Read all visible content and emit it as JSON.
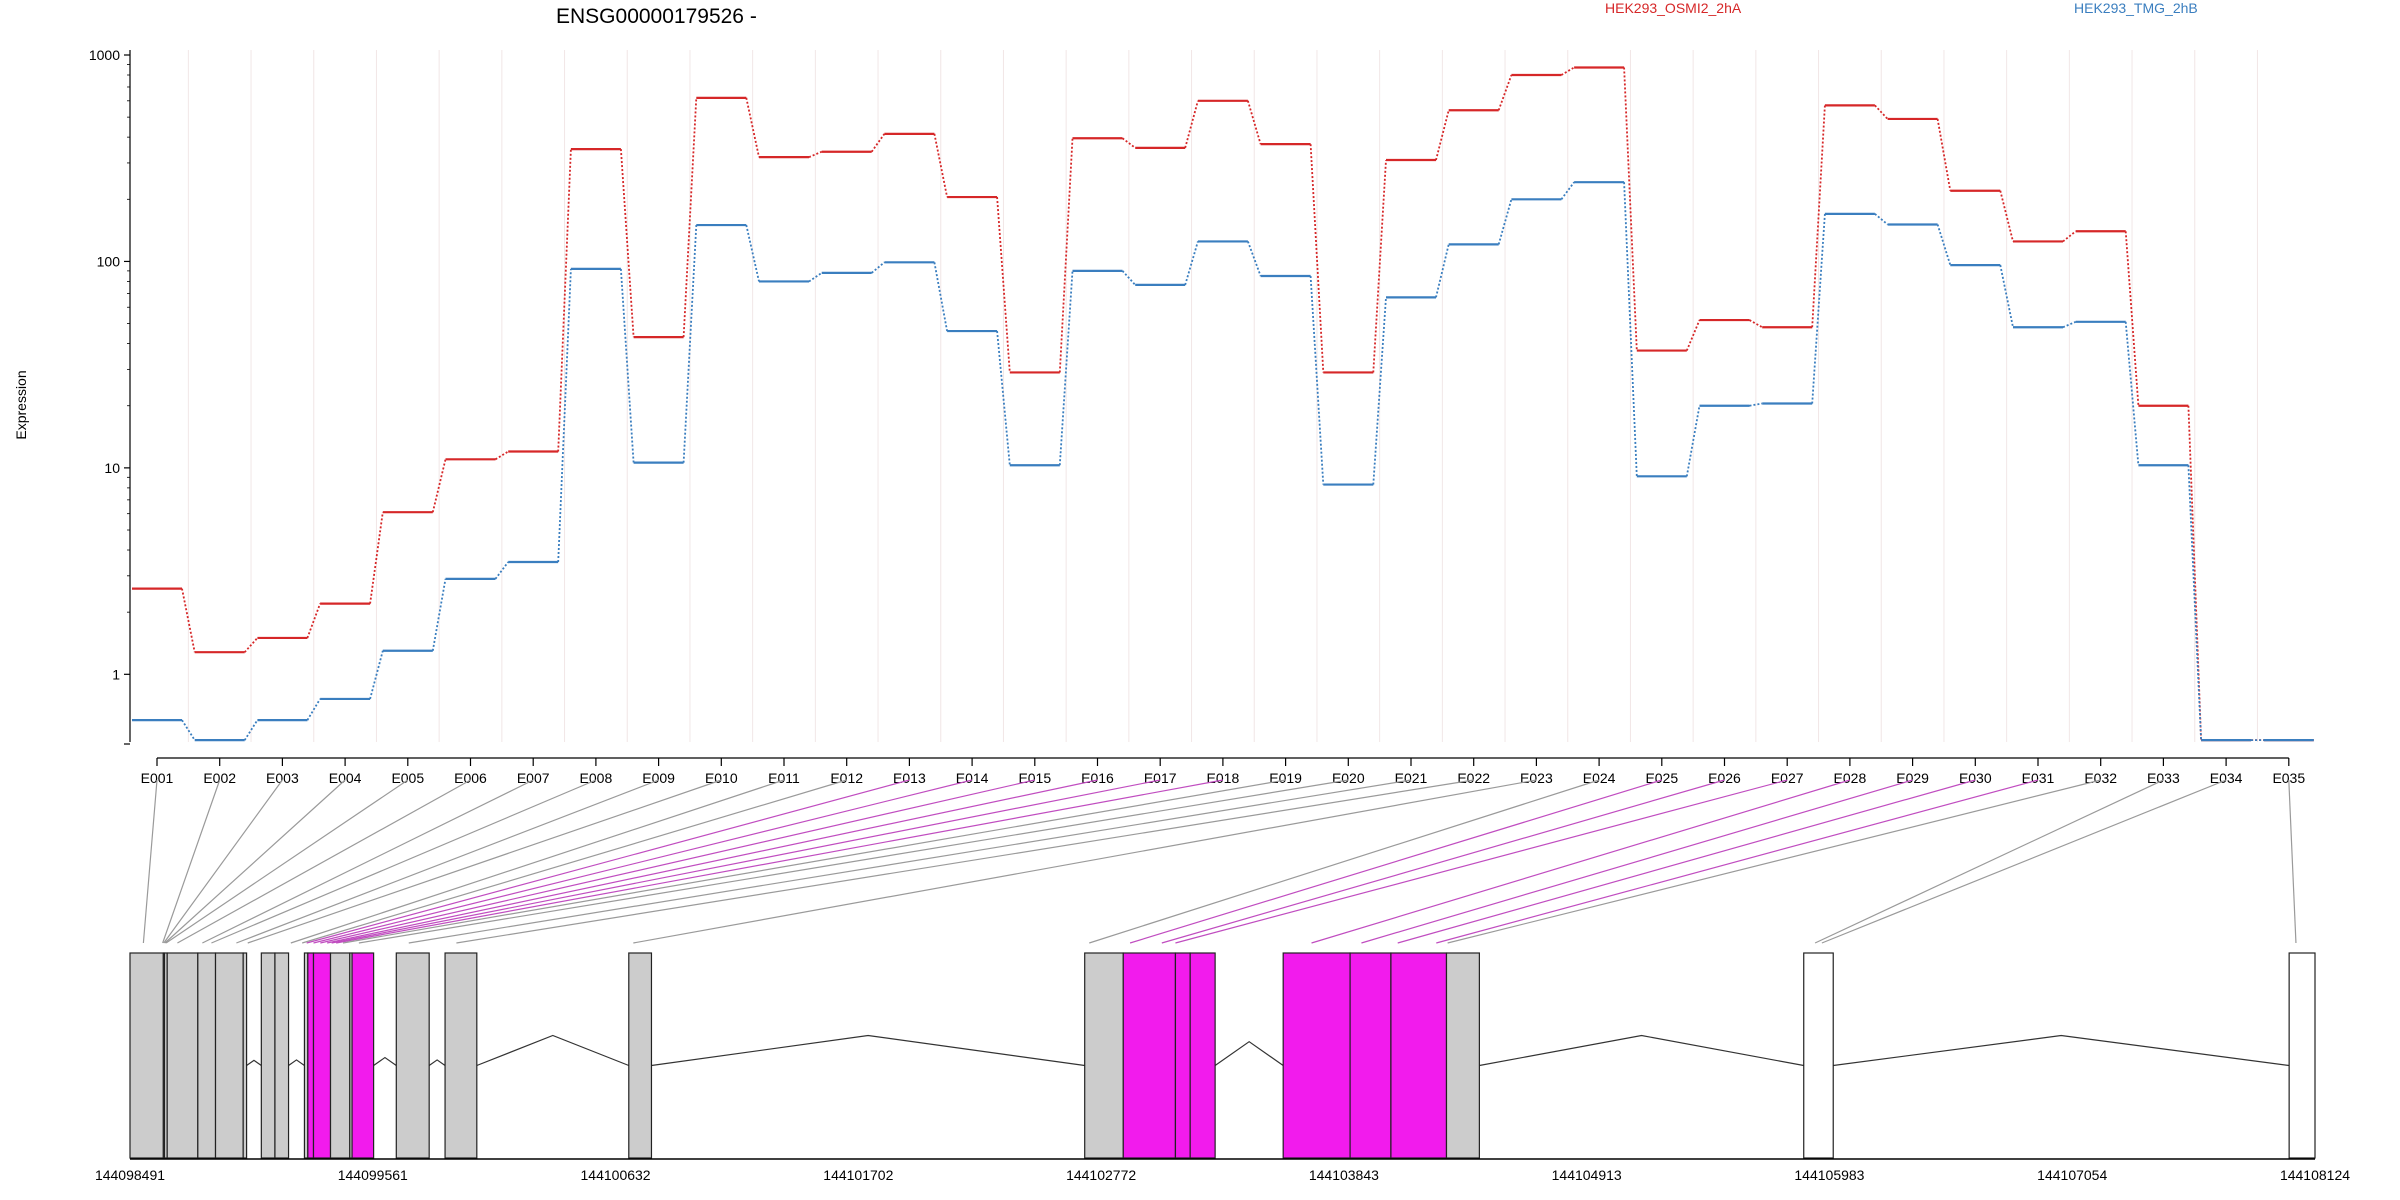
{
  "chart_data": {
    "type": "line",
    "title": "ENSG00000179526 -",
    "ylabel": "Expression",
    "yscale": "log",
    "y_ticks": [
      1,
      10,
      100,
      1000
    ],
    "y_tick_labels": [
      "1",
      "10",
      "100",
      "1000"
    ],
    "ylim": [
      0.47,
      1000
    ],
    "grid": "vertical",
    "legend_placement": "top",
    "categories": [
      "E001",
      "E002",
      "E003",
      "E004",
      "E005",
      "E006",
      "E007",
      "E008",
      "E009",
      "E010",
      "E011",
      "E012",
      "E013",
      "E014",
      "E015",
      "E016",
      "E017",
      "E018",
      "E019",
      "E020",
      "E021",
      "E022",
      "E023",
      "E024",
      "E025",
      "E026",
      "E027",
      "E028",
      "E029",
      "E030",
      "E031",
      "E032",
      "E033",
      "E034",
      "E035"
    ],
    "series": [
      {
        "name": "HEK293_OSMI2_2hA",
        "color": "#d62728",
        "values": [
          2.6,
          1.28,
          1.5,
          2.2,
          6.1,
          11,
          12,
          350,
          43,
          620,
          320,
          340,
          415,
          205,
          29,
          395,
          355,
          600,
          370,
          29,
          310,
          540,
          800,
          870,
          37,
          52,
          48,
          570,
          490,
          220,
          125,
          140,
          20,
          0.48,
          0.48
        ]
      },
      {
        "name": "HEK293_TMG_2hB",
        "color": "#3a7ebf",
        "values": [
          0.6,
          0.48,
          0.6,
          0.76,
          1.3,
          2.9,
          3.5,
          92,
          10.6,
          150,
          80,
          88,
          99,
          46,
          10.3,
          90,
          77,
          125,
          85,
          8.3,
          67,
          121,
          200,
          242,
          9.1,
          20,
          20.5,
          170,
          151,
          96,
          48,
          51,
          10.3,
          0.48,
          0.48
        ]
      }
    ],
    "gene_model": {
      "coordinate_labels": [
        "144098491",
        "144099561",
        "144100632",
        "144101702",
        "144102772",
        "144103843",
        "144104913",
        "144105983",
        "144107054",
        "144108124"
      ],
      "genome_start": 144098491,
      "genome_end": 144108124,
      "exon_colors": {
        "default": "#cccccc",
        "highlighted": "#f21bed",
        "unexpressed": "#ffffff"
      },
      "connector_colors": {
        "default": "#9a9a9a",
        "highlighted": "#c04dc0"
      },
      "exons": [
        {
          "id": "E001",
          "start": 144098491,
          "end": 144098638,
          "fill": "default"
        },
        {
          "id": "E002",
          "start": 144098638,
          "end": 144098643,
          "fill": "default"
        },
        {
          "id": "E003",
          "start": 144098643,
          "end": 144098655,
          "fill": "default"
        },
        {
          "id": "E004",
          "start": 144098655,
          "end": 144098790,
          "fill": "default"
        },
        {
          "id": "E005",
          "start": 144098790,
          "end": 144098868,
          "fill": "default"
        },
        {
          "id": "E006",
          "start": 144098868,
          "end": 144098990,
          "fill": "default"
        },
        {
          "id": "E007",
          "start": 144098990,
          "end": 144099005,
          "fill": "default"
        },
        {
          "id": "E008",
          "start": 144099070,
          "end": 144099130,
          "fill": "default"
        },
        {
          "id": "E009",
          "start": 144099130,
          "end": 144099190,
          "fill": "default"
        },
        {
          "id": "E010",
          "start": 144099260,
          "end": 144099275,
          "fill": "default"
        },
        {
          "id": "E011",
          "start": 144099275,
          "end": 144099300,
          "fill": "highlighted"
        },
        {
          "id": "E012",
          "start": 144099300,
          "end": 144099375,
          "fill": "highlighted"
        },
        {
          "id": "E013",
          "start": 144099375,
          "end": 144099460,
          "fill": "default"
        },
        {
          "id": "E014",
          "start": 144099460,
          "end": 144099470,
          "fill": "default"
        },
        {
          "id": "E015",
          "start": 144099470,
          "end": 144099565,
          "fill": "highlighted"
        },
        {
          "id": "E016",
          "start": 144099665,
          "end": 144099810,
          "fill": "default"
        },
        {
          "id": "E017",
          "start": 144099880,
          "end": 144100020,
          "fill": "default"
        },
        {
          "id": "E018",
          "start": 144100690,
          "end": 144100790,
          "fill": "default"
        },
        {
          "id": "E019",
          "start": 144102700,
          "end": 144102870,
          "fill": "default"
        },
        {
          "id": "E020",
          "start": 144102870,
          "end": 144103100,
          "fill": "highlighted"
        },
        {
          "id": "E021",
          "start": 144103100,
          "end": 144103165,
          "fill": "highlighted"
        },
        {
          "id": "E022",
          "start": 144103165,
          "end": 144103275,
          "fill": "highlighted"
        },
        {
          "id": "E023",
          "start": 144103575,
          "end": 144103870,
          "fill": "highlighted"
        },
        {
          "id": "E024",
          "start": 144103870,
          "end": 144104050,
          "fill": "highlighted"
        },
        {
          "id": "E025",
          "start": 144104050,
          "end": 144104295,
          "fill": "highlighted"
        },
        {
          "id": "E026",
          "start": 144104295,
          "end": 144104440,
          "fill": "default"
        },
        {
          "id": "E027",
          "start": 144105870,
          "end": 144106000,
          "fill": "unexpressed"
        },
        {
          "id": "E028",
          "start": 144108010,
          "end": 144108124,
          "fill": "unexpressed"
        }
      ],
      "introns": [
        {
          "from": 144099005,
          "to": 144099070
        },
        {
          "from": 144099190,
          "to": 144099260
        },
        {
          "from": 144099565,
          "to": 144099665
        },
        {
          "from": 144099810,
          "to": 144099880
        },
        {
          "from": 144100020,
          "to": 144100690
        },
        {
          "from": 144100790,
          "to": 144102700
        },
        {
          "from": 144103275,
          "to": 144103575
        },
        {
          "from": 144104440,
          "to": 144105870
        },
        {
          "from": 144106000,
          "to": 144108010
        }
      ],
      "bin_links": [
        {
          "bin": "E001",
          "genomic": 144098550,
          "style": "default"
        },
        {
          "bin": "E002",
          "genomic": 144098635,
          "style": "default"
        },
        {
          "bin": "E003",
          "genomic": 144098640,
          "style": "default"
        },
        {
          "bin": "E004",
          "genomic": 144098645,
          "style": "default"
        },
        {
          "bin": "E005",
          "genomic": 144098650,
          "style": "default"
        },
        {
          "bin": "E006",
          "genomic": 144098700,
          "style": "default"
        },
        {
          "bin": "E007",
          "genomic": 144098810,
          "style": "default"
        },
        {
          "bin": "E008",
          "genomic": 144098850,
          "style": "default"
        },
        {
          "bin": "E009",
          "genomic": 144098960,
          "style": "default"
        },
        {
          "bin": "E010",
          "genomic": 144099010,
          "style": "default"
        },
        {
          "bin": "E011",
          "genomic": 144099200,
          "style": "default"
        },
        {
          "bin": "E012",
          "genomic": 144099250,
          "style": "default"
        },
        {
          "bin": "E013",
          "genomic": 144099270,
          "style": "highlighted"
        },
        {
          "bin": "E014",
          "genomic": 144099300,
          "style": "highlighted"
        },
        {
          "bin": "E015",
          "genomic": 144099330,
          "style": "highlighted"
        },
        {
          "bin": "E016",
          "genomic": 144099360,
          "style": "highlighted"
        },
        {
          "bin": "E017",
          "genomic": 144099380,
          "style": "highlighted"
        },
        {
          "bin": "E018",
          "genomic": 144099400,
          "style": "highlighted"
        },
        {
          "bin": "E019",
          "genomic": 144099430,
          "style": "default"
        },
        {
          "bin": "E020",
          "genomic": 144099500,
          "style": "default"
        },
        {
          "bin": "E021",
          "genomic": 144099720,
          "style": "default"
        },
        {
          "bin": "E022",
          "genomic": 144099930,
          "style": "default"
        },
        {
          "bin": "E023",
          "genomic": 144100710,
          "style": "default"
        },
        {
          "bin": "E024",
          "genomic": 144102720,
          "style": "default"
        },
        {
          "bin": "E025",
          "genomic": 144102900,
          "style": "highlighted"
        },
        {
          "bin": "E026",
          "genomic": 144103040,
          "style": "highlighted"
        },
        {
          "bin": "E027",
          "genomic": 144103100,
          "style": "highlighted"
        },
        {
          "bin": "E028",
          "genomic": 144103700,
          "style": "highlighted"
        },
        {
          "bin": "E029",
          "genomic": 144103920,
          "style": "highlighted"
        },
        {
          "bin": "E030",
          "genomic": 144104080,
          "style": "highlighted"
        },
        {
          "bin": "E031",
          "genomic": 144104250,
          "style": "highlighted"
        },
        {
          "bin": "E032",
          "genomic": 144104300,
          "style": "default"
        },
        {
          "bin": "E033",
          "genomic": 144105920,
          "style": "default"
        },
        {
          "bin": "E034",
          "genomic": 144105950,
          "style": "default"
        },
        {
          "bin": "E035",
          "genomic": 144108040,
          "style": "default"
        }
      ]
    }
  }
}
